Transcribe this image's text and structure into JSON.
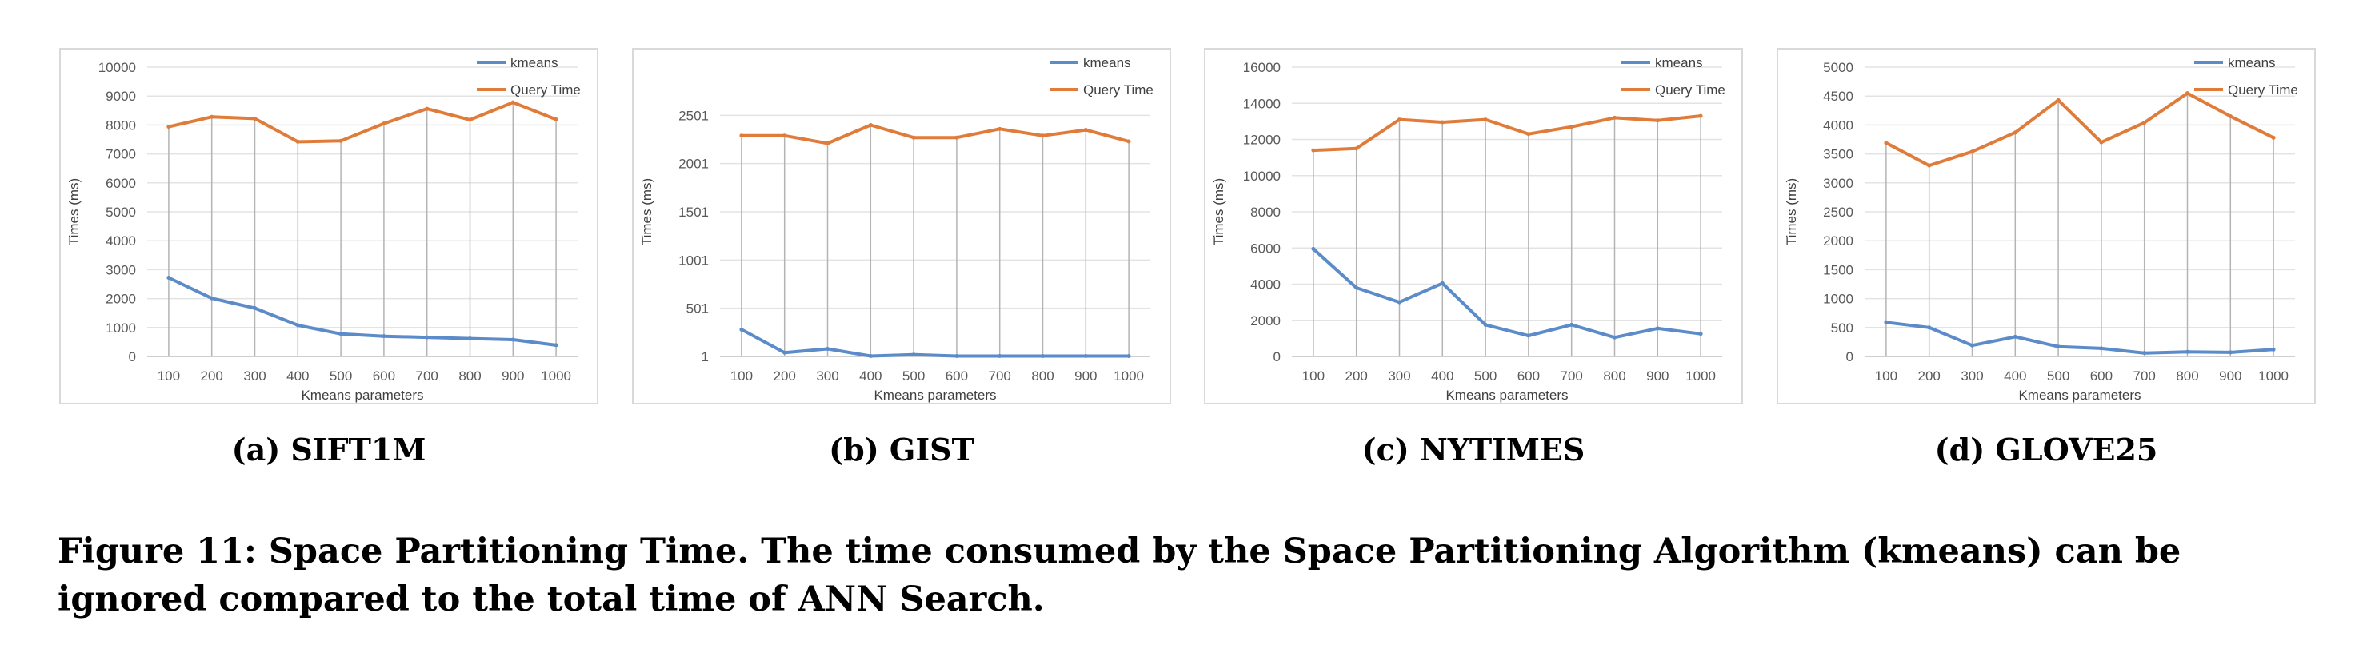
{
  "chart_data": [
    {
      "type": "line",
      "subtitle": "(a) SIFT1M",
      "categories": [
        "100",
        "200",
        "300",
        "400",
        "500",
        "600",
        "700",
        "800",
        "900",
        "1000"
      ],
      "xlabel": "Kmeans parameters",
      "ylabel": "Times (ms)",
      "ylim": [
        0,
        10000
      ],
      "yticks": [
        "0",
        "1000",
        "2000",
        "3000",
        "4000",
        "5000",
        "6000",
        "7000",
        "8000",
        "9000",
        "10000"
      ],
      "grid": true,
      "legend_position": "top-right",
      "series": [
        {
          "name": "kmeans",
          "color": "#5b8bc9",
          "values": [
            2720,
            2010,
            1670,
            1080,
            780,
            700,
            660,
            620,
            580,
            390
          ]
        },
        {
          "name": "Query Time",
          "color": "#e07b39",
          "values": [
            7940,
            8280,
            8220,
            7420,
            7450,
            8050,
            8560,
            8180,
            8780,
            8190
          ]
        }
      ]
    },
    {
      "type": "line",
      "subtitle": "(b) GIST",
      "categories": [
        "100",
        "200",
        "300",
        "400",
        "500",
        "600",
        "700",
        "800",
        "900",
        "1000"
      ],
      "xlabel": "Kmeans parameters",
      "ylabel": "Times (ms)",
      "ylim": [
        1,
        3001
      ],
      "yticks": [
        "1",
        "501",
        "1001",
        "1501",
        "2001",
        "2501"
      ],
      "grid": true,
      "legend_position": "top-right",
      "series": [
        {
          "name": "kmeans",
          "color": "#5b8bc9",
          "values": [
            280,
            40,
            80,
            5,
            20,
            5,
            5,
            5,
            5,
            5
          ]
        },
        {
          "name": "Query Time",
          "color": "#e07b39",
          "values": [
            2290,
            2290,
            2210,
            2400,
            2270,
            2270,
            2360,
            2290,
            2350,
            2230
          ]
        }
      ]
    },
    {
      "type": "line",
      "subtitle": "(c) NYTIMES",
      "categories": [
        "100",
        "200",
        "300",
        "400",
        "500",
        "600",
        "700",
        "800",
        "900",
        "1000"
      ],
      "xlabel": "Kmeans parameters",
      "ylabel": "Times (ms)",
      "ylim": [
        0,
        16000
      ],
      "yticks": [
        "0",
        "2000",
        "4000",
        "6000",
        "8000",
        "10000",
        "12000",
        "14000",
        "16000"
      ],
      "grid": true,
      "legend_position": "top-right",
      "series": [
        {
          "name": "kmeans",
          "color": "#5b8bc9",
          "values": [
            5950,
            3800,
            3000,
            4050,
            1750,
            1150,
            1750,
            1050,
            1550,
            1250
          ]
        },
        {
          "name": "Query Time",
          "color": "#e07b39",
          "values": [
            11400,
            11500,
            13100,
            12950,
            13100,
            12300,
            12700,
            13200,
            13050,
            13300
          ]
        }
      ]
    },
    {
      "type": "line",
      "subtitle": "(d) GLOVE25",
      "categories": [
        "100",
        "200",
        "300",
        "400",
        "500",
        "600",
        "700",
        "800",
        "900",
        "1000"
      ],
      "xlabel": "Kmeans parameters",
      "ylabel": "Times (ms)",
      "ylim": [
        0,
        5000
      ],
      "yticks": [
        "0",
        "500",
        "1000",
        "1500",
        "2000",
        "2500",
        "3000",
        "3500",
        "4000",
        "4500",
        "5000"
      ],
      "grid": true,
      "legend_position": "top-right",
      "series": [
        {
          "name": "kmeans",
          "color": "#5b8bc9",
          "values": [
            590,
            500,
            190,
            340,
            170,
            140,
            60,
            80,
            70,
            120
          ]
        },
        {
          "name": "Query Time",
          "color": "#e07b39",
          "values": [
            3690,
            3300,
            3540,
            3870,
            4430,
            3700,
            4040,
            4550,
            4150,
            3780
          ]
        }
      ]
    }
  ],
  "caption": "Figure 11: Space Partitioning Time. The time consumed by the Space Partitioning Algorithm (kmeans) can be ignored compared to the total time of ANN Search."
}
